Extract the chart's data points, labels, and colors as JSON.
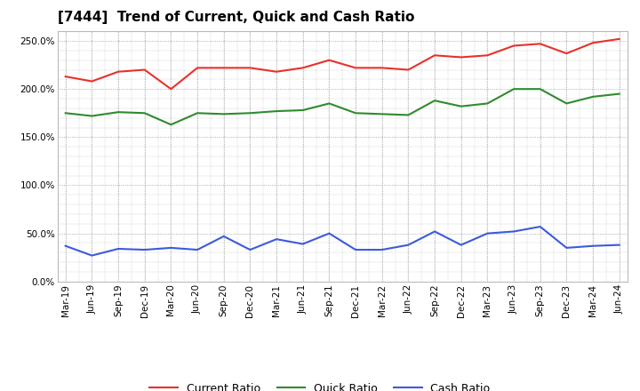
{
  "title": "[7444]  Trend of Current, Quick and Cash Ratio",
  "labels": [
    "Mar-19",
    "Jun-19",
    "Sep-19",
    "Dec-19",
    "Mar-20",
    "Jun-20",
    "Sep-20",
    "Dec-20",
    "Mar-21",
    "Jun-21",
    "Sep-21",
    "Dec-21",
    "Mar-22",
    "Jun-22",
    "Sep-22",
    "Dec-22",
    "Mar-23",
    "Jun-23",
    "Sep-23",
    "Dec-23",
    "Mar-24",
    "Jun-24"
  ],
  "current_ratio": [
    213,
    208,
    218,
    220,
    200,
    222,
    222,
    222,
    218,
    222,
    230,
    222,
    222,
    220,
    235,
    233,
    235,
    245,
    247,
    237,
    248,
    252
  ],
  "quick_ratio": [
    175,
    172,
    176,
    175,
    163,
    175,
    174,
    175,
    177,
    178,
    185,
    175,
    174,
    173,
    188,
    182,
    185,
    200,
    200,
    185,
    192,
    195
  ],
  "cash_ratio": [
    37,
    27,
    34,
    33,
    35,
    33,
    47,
    33,
    44,
    39,
    50,
    33,
    33,
    38,
    52,
    38,
    50,
    52,
    57,
    35,
    37,
    38
  ],
  "current_color": "#e8312a",
  "quick_color": "#2e8b2e",
  "cash_color": "#3b5bdb",
  "ylim": [
    0,
    260
  ],
  "yticks": [
    0,
    50,
    100,
    150,
    200,
    250
  ],
  "background_color": "#ffffff",
  "plot_bg_color": "#ffffff",
  "grid_color": "#999999",
  "line_width": 1.5,
  "title_fontsize": 11,
  "tick_fontsize": 7.5,
  "legend_fontsize": 9
}
